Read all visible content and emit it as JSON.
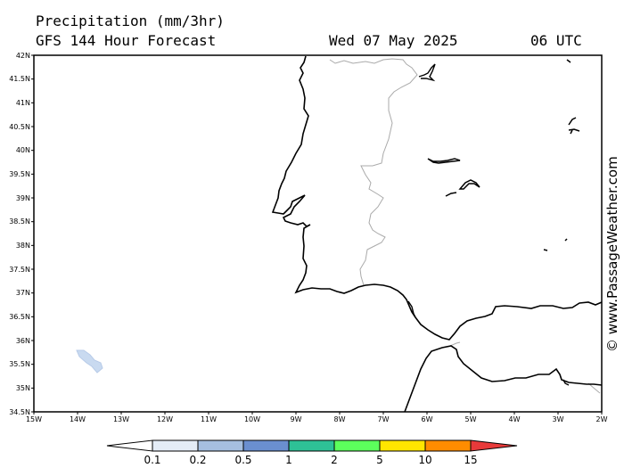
{
  "header": {
    "title": "Precipitation (mm/3hr)",
    "subtitle": "GFS 144 Hour Forecast",
    "date": "Wed 07 May 2025",
    "time": "06 UTC"
  },
  "axes": {
    "lat_labels": [
      "42N",
      "41.5N",
      "41N",
      "40.5N",
      "40N",
      "39.5N",
      "39N",
      "38.5N",
      "38N",
      "37.5N",
      "37N",
      "36.5N",
      "36N",
      "35.5N",
      "35N",
      "34.5N"
    ],
    "lon_labels": [
      "15W",
      "14W",
      "13W",
      "12W",
      "11W",
      "10W",
      "9W",
      "8W",
      "7W",
      "6W",
      "5W",
      "4W",
      "3W",
      "2W"
    ]
  },
  "colorbar": {
    "labels": [
      "0.1",
      "0.2",
      "0.5",
      "1",
      "2",
      "5",
      "10",
      "15"
    ],
    "colors": [
      "#ffffff",
      "#e4ecf6",
      "#a6bfe0",
      "#6a8fd0",
      "#2ec196",
      "#5cff5c",
      "#ffe600",
      "#ff8c00",
      "#e83a3a"
    ]
  },
  "credit": "© www.PassageWeather.com",
  "map": {
    "region": "Iberian Peninsula / Strait of Gibraltar",
    "precip_patch": "Light precipitation (0.1-0.2 mm/3hr) near 35.6N 14W",
    "land_line_color": "#000000",
    "border_color": "#aaaaaa",
    "precip_color": "#c9daf0"
  }
}
